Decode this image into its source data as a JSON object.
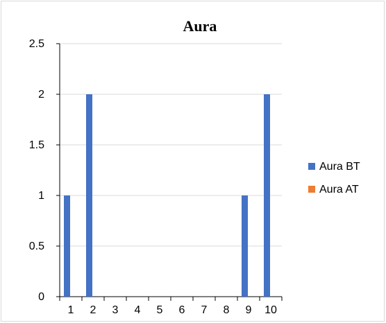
{
  "chart_data": {
    "type": "bar",
    "title": "Aura",
    "xlabel": "",
    "ylabel": "",
    "categories": [
      "1",
      "2",
      "3",
      "4",
      "5",
      "6",
      "7",
      "8",
      "9",
      "10"
    ],
    "series": [
      {
        "name": "Aura BT",
        "color": "#4472C4",
        "values": [
          1,
          2,
          0,
          0,
          0,
          0,
          0,
          0,
          1,
          2
        ]
      },
      {
        "name": "Aura AT",
        "color": "#ED7D31",
        "values": [
          0,
          0,
          0,
          0,
          0,
          0,
          0,
          0,
          0,
          0
        ]
      }
    ],
    "ylim": [
      0,
      2.5
    ],
    "yticks": [
      "0",
      "0.5",
      "1",
      "1.5",
      "2",
      "2.5"
    ],
    "grid": true,
    "legend_position": "right",
    "colors": {
      "gridline": "#d9d9d9",
      "axis": "#000000",
      "frame": "#d9d9d9"
    }
  }
}
